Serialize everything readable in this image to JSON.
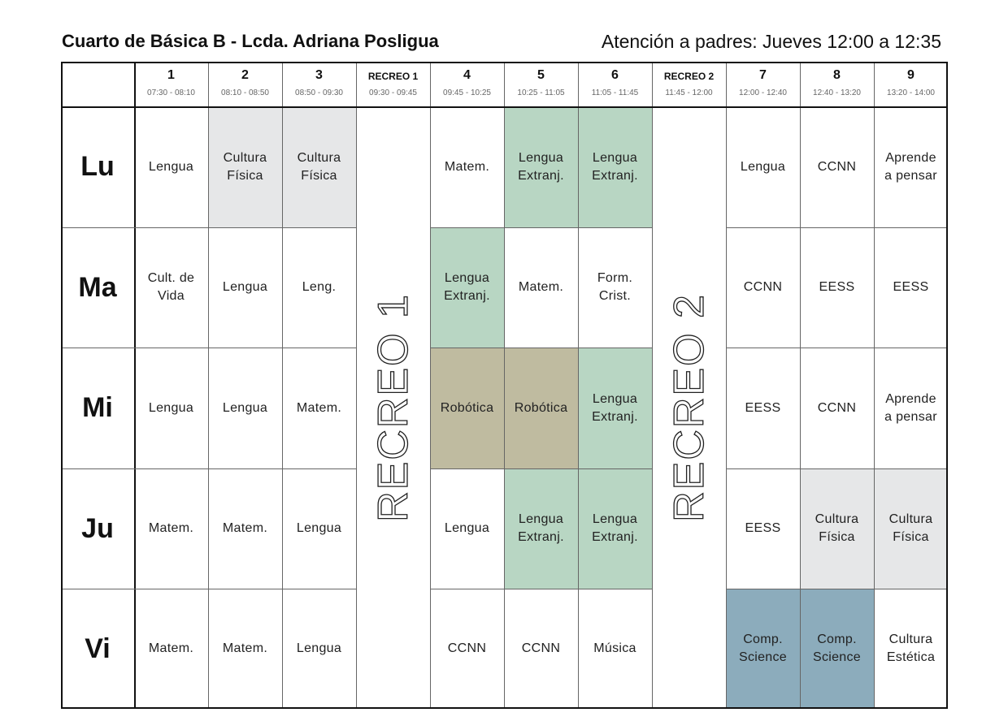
{
  "header": {
    "title": "Cuarto de Básica B - Lcda. Adriana Posligua",
    "attention": "Atención a padres: Jueves 12:00 a 12:35"
  },
  "periods": [
    {
      "label": "1",
      "time": "07:30 - 08:10"
    },
    {
      "label": "2",
      "time": "08:10 - 08:50"
    },
    {
      "label": "3",
      "time": "08:50 - 09:30"
    },
    {
      "label": "RECREO 1",
      "time": "09:30 - 09:45"
    },
    {
      "label": "4",
      "time": "09:45 - 10:25"
    },
    {
      "label": "5",
      "time": "10:25 - 11:05"
    },
    {
      "label": "6",
      "time": "11:05 - 11:45"
    },
    {
      "label": "RECREO 2",
      "time": "11:45 - 12:00"
    },
    {
      "label": "7",
      "time": "12:00 - 12:40"
    },
    {
      "label": "8",
      "time": "12:40 - 13:20"
    },
    {
      "label": "9",
      "time": "13:20 - 14:00"
    }
  ],
  "breaks": [
    {
      "label": "RECREO 1"
    },
    {
      "label": "RECREO 2"
    }
  ],
  "colors": {
    "gray": "#e6e7e8",
    "green": "#b8d6c3",
    "khaki": "#bfbba0",
    "blue": "#8cacbc",
    "white": "#ffffff"
  },
  "days": [
    {
      "label": "Lu",
      "cells": [
        {
          "text": "Lengua",
          "color": "white"
        },
        {
          "text": "Cultura\nFísica",
          "color": "gray"
        },
        {
          "text": "Cultura\nFísica",
          "color": "gray"
        },
        {
          "text": "Matem.",
          "color": "white"
        },
        {
          "text": "Lengua\nExtranj.",
          "color": "green"
        },
        {
          "text": "Lengua\nExtranj.",
          "color": "green"
        },
        {
          "text": "Lengua",
          "color": "white"
        },
        {
          "text": "CCNN",
          "color": "white"
        },
        {
          "text": "Aprende\na pensar",
          "color": "white"
        }
      ]
    },
    {
      "label": "Ma",
      "cells": [
        {
          "text": "Cult. de\nVida",
          "color": "white"
        },
        {
          "text": "Lengua",
          "color": "white"
        },
        {
          "text": "Leng.",
          "color": "white"
        },
        {
          "text": "Lengua\nExtranj.",
          "color": "green"
        },
        {
          "text": "Matem.",
          "color": "white"
        },
        {
          "text": "Form.\nCrist.",
          "color": "white"
        },
        {
          "text": "CCNN",
          "color": "white"
        },
        {
          "text": "EESS",
          "color": "white"
        },
        {
          "text": "EESS",
          "color": "white"
        }
      ]
    },
    {
      "label": "Mi",
      "cells": [
        {
          "text": "Lengua",
          "color": "white"
        },
        {
          "text": "Lengua",
          "color": "white"
        },
        {
          "text": "Matem.",
          "color": "white"
        },
        {
          "text": "Robótica",
          "color": "khaki"
        },
        {
          "text": "Robótica",
          "color": "khaki"
        },
        {
          "text": "Lengua\nExtranj.",
          "color": "green"
        },
        {
          "text": "EESS",
          "color": "white"
        },
        {
          "text": "CCNN",
          "color": "white"
        },
        {
          "text": "Aprende\na pensar",
          "color": "white"
        }
      ]
    },
    {
      "label": "Ju",
      "cells": [
        {
          "text": "Matem.",
          "color": "white"
        },
        {
          "text": "Matem.",
          "color": "white"
        },
        {
          "text": "Lengua",
          "color": "white"
        },
        {
          "text": "Lengua",
          "color": "white"
        },
        {
          "text": "Lengua\nExtranj.",
          "color": "green"
        },
        {
          "text": "Lengua\nExtranj.",
          "color": "green"
        },
        {
          "text": "EESS",
          "color": "white"
        },
        {
          "text": "Cultura\nFísica",
          "color": "gray"
        },
        {
          "text": "Cultura\nFísica",
          "color": "gray"
        }
      ]
    },
    {
      "label": "Vi",
      "cells": [
        {
          "text": "Matem.",
          "color": "white"
        },
        {
          "text": "Matem.",
          "color": "white"
        },
        {
          "text": "Lengua",
          "color": "white"
        },
        {
          "text": "CCNN",
          "color": "white"
        },
        {
          "text": "CCNN",
          "color": "white"
        },
        {
          "text": "Música",
          "color": "white"
        },
        {
          "text": "Comp.\nScience",
          "color": "blue"
        },
        {
          "text": "Comp.\nScience",
          "color": "blue"
        },
        {
          "text": "Cultura\nEstética",
          "color": "white"
        }
      ]
    }
  ]
}
